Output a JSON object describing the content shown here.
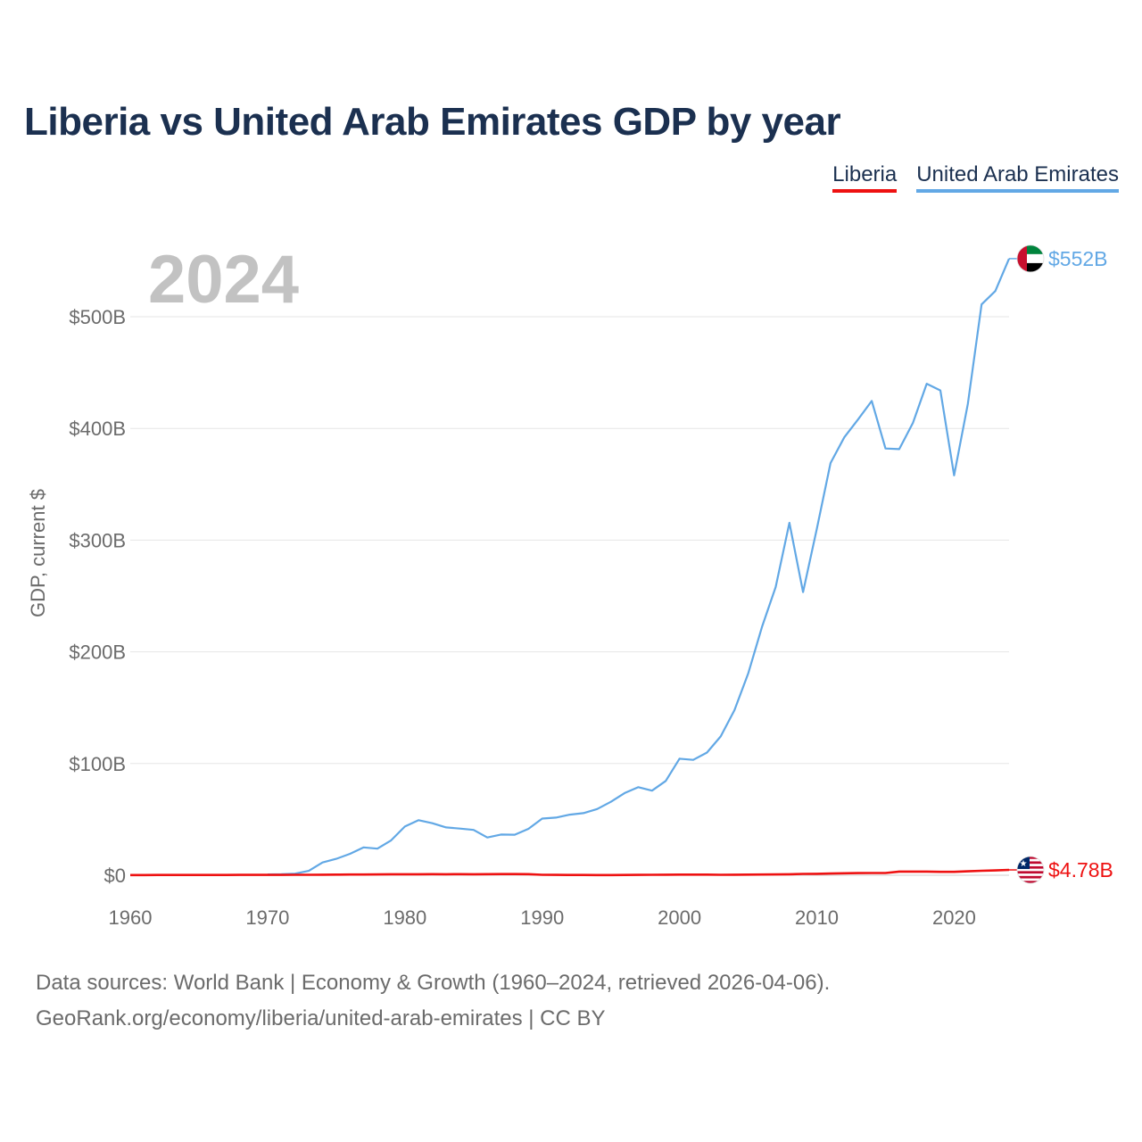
{
  "chart_data": {
    "type": "line",
    "title": "Liberia vs United Arab Emirates GDP by year",
    "year_label": "2024",
    "ylabel": "GDP, current $",
    "xlabel": "",
    "xlim": [
      1960,
      2024
    ],
    "ylim": [
      0,
      560
    ],
    "y_unit": "billion USD",
    "x_ticks": [
      1960,
      1970,
      1980,
      1990,
      2000,
      2010,
      2020
    ],
    "y_ticks": [
      {
        "value": 0,
        "label": "$0"
      },
      {
        "value": 100,
        "label": "$100B"
      },
      {
        "value": 200,
        "label": "$200B"
      },
      {
        "value": 300,
        "label": "$300B"
      },
      {
        "value": 400,
        "label": "$400B"
      },
      {
        "value": 500,
        "label": "$500B"
      }
    ],
    "grid": true,
    "legend_position": "top-right",
    "series": [
      {
        "name": "Liberia",
        "color": "#ee1111",
        "end_label": "$4.78B",
        "flag": "liberia-flag",
        "points": [
          [
            1960,
            0.19
          ],
          [
            1961,
            0.19
          ],
          [
            1962,
            0.2
          ],
          [
            1963,
            0.21
          ],
          [
            1964,
            0.22
          ],
          [
            1965,
            0.24
          ],
          [
            1966,
            0.25
          ],
          [
            1967,
            0.26
          ],
          [
            1968,
            0.28
          ],
          [
            1969,
            0.3
          ],
          [
            1970,
            0.32
          ],
          [
            1971,
            0.34
          ],
          [
            1972,
            0.39
          ],
          [
            1973,
            0.41
          ],
          [
            1974,
            0.49
          ],
          [
            1975,
            0.54
          ],
          [
            1976,
            0.6
          ],
          [
            1977,
            0.66
          ],
          [
            1978,
            0.74
          ],
          [
            1979,
            0.84
          ],
          [
            1980,
            0.88
          ],
          [
            1981,
            0.88
          ],
          [
            1982,
            0.92
          ],
          [
            1983,
            0.9
          ],
          [
            1984,
            0.92
          ],
          [
            1985,
            0.91
          ],
          [
            1986,
            0.95
          ],
          [
            1987,
            1.04
          ],
          [
            1988,
            1.07
          ],
          [
            1989,
            0.98
          ],
          [
            1990,
            0.4
          ],
          [
            1991,
            0.35
          ],
          [
            1992,
            0.25
          ],
          [
            1993,
            0.2
          ],
          [
            1994,
            0.18
          ],
          [
            1995,
            0.18
          ],
          [
            1996,
            0.2
          ],
          [
            1997,
            0.3
          ],
          [
            1998,
            0.36
          ],
          [
            1999,
            0.44
          ],
          [
            2000,
            0.53
          ],
          [
            2001,
            0.52
          ],
          [
            2002,
            0.54
          ],
          [
            2003,
            0.41
          ],
          [
            2004,
            0.47
          ],
          [
            2005,
            0.55
          ],
          [
            2006,
            0.6
          ],
          [
            2007,
            0.74
          ],
          [
            2008,
            0.85
          ],
          [
            2009,
            1.16
          ],
          [
            2010,
            1.29
          ],
          [
            2011,
            1.54
          ],
          [
            2012,
            1.74
          ],
          [
            2013,
            1.95
          ],
          [
            2014,
            2.01
          ],
          [
            2015,
            2.0
          ],
          [
            2016,
            3.26
          ],
          [
            2017,
            3.29
          ],
          [
            2018,
            3.26
          ],
          [
            2019,
            3.07
          ],
          [
            2020,
            3.04
          ],
          [
            2021,
            3.51
          ],
          [
            2022,
            3.97
          ],
          [
            2023,
            4.3
          ],
          [
            2024,
            4.78
          ]
        ]
      },
      {
        "name": "United Arab Emirates",
        "color": "#62a8e5",
        "end_label": "$552B",
        "flag": "uae-flag",
        "points": [
          [
            1970,
            0.7
          ],
          [
            1971,
            0.9
          ],
          [
            1972,
            1.4
          ],
          [
            1973,
            3.9
          ],
          [
            1974,
            11.4
          ],
          [
            1975,
            14.7
          ],
          [
            1976,
            19.2
          ],
          [
            1977,
            24.9
          ],
          [
            1978,
            23.8
          ],
          [
            1979,
            31.2
          ],
          [
            1980,
            43.6
          ],
          [
            1981,
            49.3
          ],
          [
            1982,
            46.6
          ],
          [
            1983,
            42.8
          ],
          [
            1984,
            41.8
          ],
          [
            1985,
            40.6
          ],
          [
            1986,
            33.8
          ],
          [
            1987,
            36.4
          ],
          [
            1988,
            36.3
          ],
          [
            1989,
            41.5
          ],
          [
            1990,
            50.7
          ],
          [
            1991,
            51.6
          ],
          [
            1992,
            54.2
          ],
          [
            1993,
            55.6
          ],
          [
            1994,
            59.3
          ],
          [
            1995,
            65.7
          ],
          [
            1996,
            73.6
          ],
          [
            1997,
            78.8
          ],
          [
            1998,
            75.7
          ],
          [
            1999,
            84.4
          ],
          [
            2000,
            104.3
          ],
          [
            2001,
            103.3
          ],
          [
            2002,
            109.8
          ],
          [
            2003,
            124.3
          ],
          [
            2004,
            147.8
          ],
          [
            2005,
            180.6
          ],
          [
            2006,
            222.1
          ],
          [
            2007,
            258.0
          ],
          [
            2008,
            315.5
          ],
          [
            2009,
            253.5
          ],
          [
            2010,
            310.0
          ],
          [
            2011,
            369.0
          ],
          [
            2012,
            392.0
          ],
          [
            2013,
            408.0
          ],
          [
            2014,
            424.6
          ],
          [
            2015,
            382.0
          ],
          [
            2016,
            381.5
          ],
          [
            2017,
            405.0
          ],
          [
            2018,
            440.0
          ],
          [
            2019,
            434.0
          ],
          [
            2020,
            358.0
          ],
          [
            2021,
            422.0
          ],
          [
            2022,
            511.0
          ],
          [
            2023,
            523.0
          ],
          [
            2024,
            552.0
          ]
        ]
      }
    ]
  },
  "legend": {
    "liberia": "Liberia",
    "uae": "United Arab Emirates"
  },
  "footer": {
    "sources": "Data sources: World Bank | Economy & Growth (1960–2024, retrieved 2026-04-06).",
    "credit": "GeoRank.org/economy/liberia/united-arab-emirates | CC BY"
  }
}
